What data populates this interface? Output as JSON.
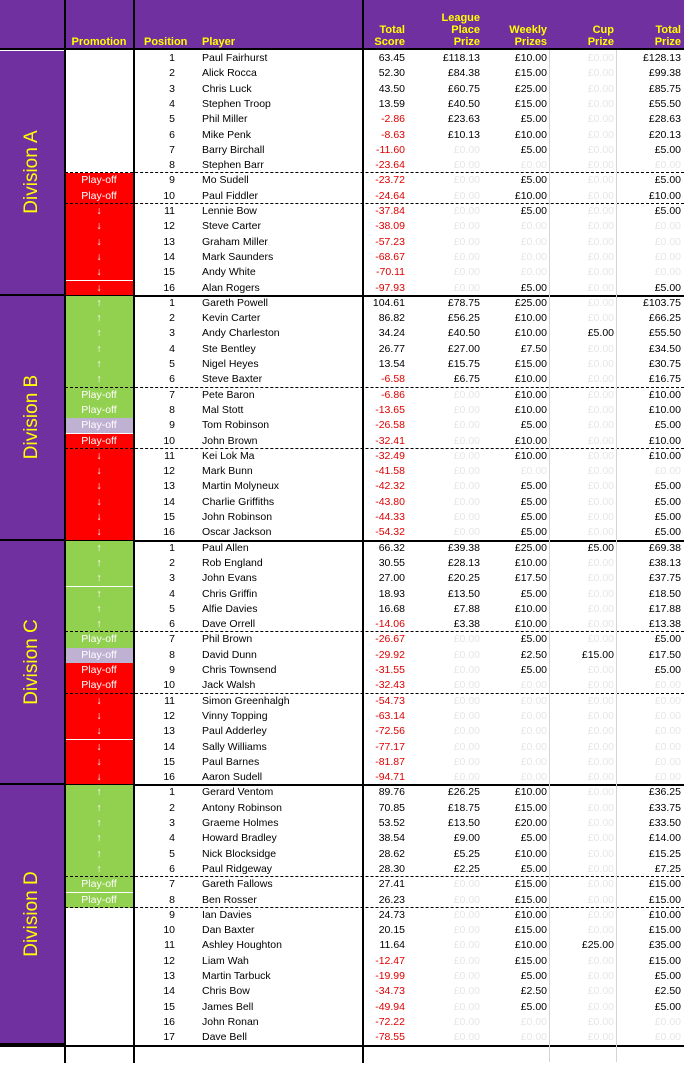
{
  "headers": {
    "promotion": "Promotion",
    "position": "Position",
    "player": "Player",
    "total_score": [
      "Total",
      "Score"
    ],
    "league_place_prize": [
      "League",
      "Place",
      "Prize"
    ],
    "weekly_prizes": [
      "Weekly",
      "Prizes"
    ],
    "cup_prize": [
      "Cup",
      "Prize"
    ],
    "total_prize": [
      "Total",
      "Prize"
    ]
  },
  "divisions": [
    {
      "name": "Division A",
      "rows": [
        {
          "pos": "1",
          "player": "Paul Fairhurst",
          "score": "63.45",
          "league": "£118.13",
          "weekly": "£10.00",
          "cup": "£0.00",
          "total": "£128.13",
          "promo": "",
          "promo_color": "#ffffff"
        },
        {
          "pos": "2",
          "player": "Alick Rocca",
          "score": "52.30",
          "league": "£84.38",
          "weekly": "£15.00",
          "cup": "£0.00",
          "total": "£99.38",
          "promo": "",
          "promo_color": "#ffffff"
        },
        {
          "pos": "3",
          "player": "Chris Luck",
          "score": "43.50",
          "league": "£60.75",
          "weekly": "£25.00",
          "cup": "£0.00",
          "total": "£85.75",
          "promo": "",
          "promo_color": "#ffffff"
        },
        {
          "pos": "4",
          "player": "Stephen Troop",
          "score": "13.59",
          "league": "£40.50",
          "weekly": "£15.00",
          "cup": "£0.00",
          "total": "£55.50",
          "promo": "",
          "promo_color": "#ffffff"
        },
        {
          "pos": "5",
          "player": "Phil Miller",
          "score": "-2.86",
          "league": "£23.63",
          "weekly": "£5.00",
          "cup": "£0.00",
          "total": "£28.63",
          "promo": "",
          "promo_color": "#ffffff"
        },
        {
          "pos": "6",
          "player": "Mike Penk",
          "score": "-8.63",
          "league": "£10.13",
          "weekly": "£10.00",
          "cup": "£0.00",
          "total": "£20.13",
          "promo": "",
          "promo_color": "#ffffff"
        },
        {
          "pos": "7",
          "player": "Barry Birchall",
          "score": "-11.60",
          "league": "£0.00",
          "weekly": "£5.00",
          "cup": "£0.00",
          "total": "£5.00",
          "promo": "",
          "promo_color": "#ffffff"
        },
        {
          "pos": "8",
          "player": "Stephen Barr",
          "score": "-23.64",
          "league": "£0.00",
          "weekly": "£0.00",
          "cup": "£0.00",
          "total": "£0.00",
          "promo": "",
          "promo_color": "#ffffff"
        },
        {
          "pos": "9",
          "player": "Mo Sudell",
          "score": "-23.72",
          "league": "£0.00",
          "weekly": "£5.00",
          "cup": "£0.00",
          "total": "£5.00",
          "promo": "Play-off",
          "promo_color": "#ff0000"
        },
        {
          "pos": "10",
          "player": "Paul Fiddler",
          "score": "-24.64",
          "league": "£0.00",
          "weekly": "£10.00",
          "cup": "£0.00",
          "total": "£10.00",
          "promo": "Play-off",
          "promo_color": "#ff0000"
        },
        {
          "pos": "11",
          "player": "Lennie Bow",
          "score": "-37.84",
          "league": "£0.00",
          "weekly": "£5.00",
          "cup": "£0.00",
          "total": "£5.00",
          "promo": "↓",
          "promo_color": "#ff0000"
        },
        {
          "pos": "12",
          "player": "Steve Carter",
          "score": "-38.09",
          "league": "£0.00",
          "weekly": "£0.00",
          "cup": "£0.00",
          "total": "£0.00",
          "promo": "↓",
          "promo_color": "#ff0000"
        },
        {
          "pos": "13",
          "player": "Graham Miller",
          "score": "-57.23",
          "league": "£0.00",
          "weekly": "£0.00",
          "cup": "£0.00",
          "total": "£0.00",
          "promo": "↓",
          "promo_color": "#ff0000"
        },
        {
          "pos": "14",
          "player": "Mark Saunders",
          "score": "-68.67",
          "league": "£0.00",
          "weekly": "£0.00",
          "cup": "£0.00",
          "total": "£0.00",
          "promo": "↓",
          "promo_color": "#ff0000"
        },
        {
          "pos": "15",
          "player": "Andy White",
          "score": "-70.11",
          "league": "£0.00",
          "weekly": "£0.00",
          "cup": "£0.00",
          "total": "£0.00",
          "promo": "↓",
          "promo_color": "#ff0000"
        },
        {
          "pos": "16",
          "player": "Alan Rogers",
          "score": "-97.93",
          "league": "£0.00",
          "weekly": "£5.00",
          "cup": "£0.00",
          "total": "£5.00",
          "promo": "↓",
          "promo_color": "#ff0000"
        }
      ]
    },
    {
      "name": "Division B",
      "rows": [
        {
          "pos": "1",
          "player": "Gareth Powell",
          "score": "104.61",
          "league": "£78.75",
          "weekly": "£25.00",
          "cup": "£0.00",
          "total": "£103.75",
          "promo": "↑",
          "promo_color": "#92d050"
        },
        {
          "pos": "2",
          "player": "Kevin Carter",
          "score": "86.82",
          "league": "£56.25",
          "weekly": "£10.00",
          "cup": "£0.00",
          "total": "£66.25",
          "promo": "↑",
          "promo_color": "#92d050"
        },
        {
          "pos": "3",
          "player": "Andy Charleston",
          "score": "34.24",
          "league": "£40.50",
          "weekly": "£10.00",
          "cup": "£5.00",
          "total": "£55.50",
          "promo": "↑",
          "promo_color": "#92d050"
        },
        {
          "pos": "4",
          "player": "Ste Bentley",
          "score": "26.77",
          "league": "£27.00",
          "weekly": "£7.50",
          "cup": "£0.00",
          "total": "£34.50",
          "promo": "↑",
          "promo_color": "#92d050"
        },
        {
          "pos": "5",
          "player": "Nigel Heyes",
          "score": "13.54",
          "league": "£15.75",
          "weekly": "£15.00",
          "cup": "£0.00",
          "total": "£30.75",
          "promo": "↑",
          "promo_color": "#92d050"
        },
        {
          "pos": "6",
          "player": "Steve Baxter",
          "score": "-6.58",
          "league": "£6.75",
          "weekly": "£10.00",
          "cup": "£0.00",
          "total": "£16.75",
          "promo": "↑",
          "promo_color": "#92d050"
        },
        {
          "pos": "7",
          "player": "Pete Baron",
          "score": "-6.86",
          "league": "£0.00",
          "weekly": "£10.00",
          "cup": "£0.00",
          "total": "£10.00",
          "promo": "Play-off",
          "promo_color": "#92d050"
        },
        {
          "pos": "8",
          "player": "Mal Stott",
          "score": "-13.65",
          "league": "£0.00",
          "weekly": "£10.00",
          "cup": "£0.00",
          "total": "£10.00",
          "promo": "Play-off",
          "promo_color": "#92d050"
        },
        {
          "pos": "9",
          "player": "Tom Robinson",
          "score": "-26.58",
          "league": "£0.00",
          "weekly": "£5.00",
          "cup": "£0.00",
          "total": "£5.00",
          "promo": "Play-off",
          "promo_color": "#bfb1d2"
        },
        {
          "pos": "10",
          "player": "John Brown",
          "score": "-32.41",
          "league": "£0.00",
          "weekly": "£10.00",
          "cup": "£0.00",
          "total": "£10.00",
          "promo": "Play-off",
          "promo_color": "#ff0000"
        },
        {
          "pos": "11",
          "player": "Kei Lok Ma",
          "score": "-32.49",
          "league": "£0.00",
          "weekly": "£10.00",
          "cup": "£0.00",
          "total": "£10.00",
          "promo": "↓",
          "promo_color": "#ff0000"
        },
        {
          "pos": "12",
          "player": "Mark Bunn",
          "score": "-41.58",
          "league": "£0.00",
          "weekly": "£0.00",
          "cup": "£0.00",
          "total": "£0.00",
          "promo": "↓",
          "promo_color": "#ff0000"
        },
        {
          "pos": "13",
          "player": "Martin Molyneux",
          "score": "-42.32",
          "league": "£0.00",
          "weekly": "£5.00",
          "cup": "£0.00",
          "total": "£5.00",
          "promo": "↓",
          "promo_color": "#ff0000"
        },
        {
          "pos": "14",
          "player": "Charlie Griffiths",
          "score": "-43.80",
          "league": "£0.00",
          "weekly": "£5.00",
          "cup": "£0.00",
          "total": "£5.00",
          "promo": "↓",
          "promo_color": "#ff0000"
        },
        {
          "pos": "15",
          "player": "John Robinson",
          "score": "-44.33",
          "league": "£0.00",
          "weekly": "£5.00",
          "cup": "£0.00",
          "total": "£5.00",
          "promo": "↓",
          "promo_color": "#ff0000"
        },
        {
          "pos": "16",
          "player": "Oscar Jackson",
          "score": "-54.32",
          "league": "£0.00",
          "weekly": "£5.00",
          "cup": "£0.00",
          "total": "£5.00",
          "promo": "↓",
          "promo_color": "#ff0000"
        }
      ]
    },
    {
      "name": "Division C",
      "rows": [
        {
          "pos": "1",
          "player": "Paul Allen",
          "score": "66.32",
          "league": "£39.38",
          "weekly": "£25.00",
          "cup": "£5.00",
          "total": "£69.38",
          "promo": "↑",
          "promo_color": "#92d050"
        },
        {
          "pos": "2",
          "player": "Rob England",
          "score": "30.55",
          "league": "£28.13",
          "weekly": "£10.00",
          "cup": "£0.00",
          "total": "£38.13",
          "promo": "↑",
          "promo_color": "#92d050"
        },
        {
          "pos": "3",
          "player": "John Evans",
          "score": "27.00",
          "league": "£20.25",
          "weekly": "£17.50",
          "cup": "£0.00",
          "total": "£37.75",
          "promo": "↑",
          "promo_color": "#92d050"
        },
        {
          "pos": "4",
          "player": "Chris Griffin",
          "score": "18.93",
          "league": "£13.50",
          "weekly": "£5.00",
          "cup": "£0.00",
          "total": "£18.50",
          "promo": "↑",
          "promo_color": "#92d050"
        },
        {
          "pos": "5",
          "player": "Alfie Davies",
          "score": "16.68",
          "league": "£7.88",
          "weekly": "£10.00",
          "cup": "£0.00",
          "total": "£17.88",
          "promo": "↑",
          "promo_color": "#92d050"
        },
        {
          "pos": "6",
          "player": "Dave Orrell",
          "score": "-14.06",
          "league": "£3.38",
          "weekly": "£10.00",
          "cup": "£0.00",
          "total": "£13.38",
          "promo": "↑",
          "promo_color": "#92d050"
        },
        {
          "pos": "7",
          "player": "Phil Brown",
          "score": "-26.67",
          "league": "£0.00",
          "weekly": "£5.00",
          "cup": "£0.00",
          "total": "£5.00",
          "promo": "Play-off",
          "promo_color": "#92d050"
        },
        {
          "pos": "8",
          "player": "David Dunn",
          "score": "-29.92",
          "league": "£0.00",
          "weekly": "£2.50",
          "cup": "£15.00",
          "total": "£17.50",
          "promo": "Play-off",
          "promo_color": "#bfb1d2"
        },
        {
          "pos": "9",
          "player": "Chris Townsend",
          "score": "-31.55",
          "league": "£0.00",
          "weekly": "£5.00",
          "cup": "£0.00",
          "total": "£5.00",
          "promo": "Play-off",
          "promo_color": "#ff0000"
        },
        {
          "pos": "10",
          "player": "Jack Walsh",
          "score": "-32.43",
          "league": "£0.00",
          "weekly": "£0.00",
          "cup": "£0.00",
          "total": "£0.00",
          "promo": "Play-off",
          "promo_color": "#ff0000"
        },
        {
          "pos": "11",
          "player": "Simon Greenhalgh",
          "score": "-54.73",
          "league": "£0.00",
          "weekly": "£0.00",
          "cup": "£0.00",
          "total": "£0.00",
          "promo": "↓",
          "promo_color": "#ff0000"
        },
        {
          "pos": "12",
          "player": "Vinny Topping",
          "score": "-63.14",
          "league": "£0.00",
          "weekly": "£0.00",
          "cup": "£0.00",
          "total": "£0.00",
          "promo": "↓",
          "promo_color": "#ff0000"
        },
        {
          "pos": "13",
          "player": "Paul Adderley",
          "score": "-72.56",
          "league": "£0.00",
          "weekly": "£0.00",
          "cup": "£0.00",
          "total": "£0.00",
          "promo": "↓",
          "promo_color": "#ff0000"
        },
        {
          "pos": "14",
          "player": "Sally Williams",
          "score": "-77.17",
          "league": "£0.00",
          "weekly": "£0.00",
          "cup": "£0.00",
          "total": "£0.00",
          "promo": "↓",
          "promo_color": "#ff0000"
        },
        {
          "pos": "15",
          "player": "Paul Barnes",
          "score": "-81.87",
          "league": "£0.00",
          "weekly": "£0.00",
          "cup": "£0.00",
          "total": "£0.00",
          "promo": "↓",
          "promo_color": "#ff0000"
        },
        {
          "pos": "16",
          "player": "Aaron Sudell",
          "score": "-94.71",
          "league": "£0.00",
          "weekly": "£0.00",
          "cup": "£0.00",
          "total": "£0.00",
          "promo": "↓",
          "promo_color": "#ff0000"
        }
      ]
    },
    {
      "name": "Division D",
      "rows": [
        {
          "pos": "1",
          "player": "Gerard Ventom",
          "score": "89.76",
          "league": "£26.25",
          "weekly": "£10.00",
          "cup": "£0.00",
          "total": "£36.25",
          "promo": "↑",
          "promo_color": "#92d050"
        },
        {
          "pos": "2",
          "player": "Antony Robinson",
          "score": "70.85",
          "league": "£18.75",
          "weekly": "£15.00",
          "cup": "£0.00",
          "total": "£33.75",
          "promo": "↑",
          "promo_color": "#92d050"
        },
        {
          "pos": "3",
          "player": "Graeme Holmes",
          "score": "53.52",
          "league": "£13.50",
          "weekly": "£20.00",
          "cup": "£0.00",
          "total": "£33.50",
          "promo": "↑",
          "promo_color": "#92d050"
        },
        {
          "pos": "4",
          "player": "Howard Bradley",
          "score": "38.54",
          "league": "£9.00",
          "weekly": "£5.00",
          "cup": "£0.00",
          "total": "£14.00",
          "promo": "↑",
          "promo_color": "#92d050"
        },
        {
          "pos": "5",
          "player": "Nick Blocksidge",
          "score": "28.62",
          "league": "£5.25",
          "weekly": "£10.00",
          "cup": "£0.00",
          "total": "£15.25",
          "promo": "↑",
          "promo_color": "#92d050"
        },
        {
          "pos": "6",
          "player": "Paul Ridgeway",
          "score": "28.30",
          "league": "£2.25",
          "weekly": "£5.00",
          "cup": "£0.00",
          "total": "£7.25",
          "promo": "↑",
          "promo_color": "#92d050"
        },
        {
          "pos": "7",
          "player": "Gareth Fallows",
          "score": "27.41",
          "league": "£0.00",
          "weekly": "£15.00",
          "cup": "£0.00",
          "total": "£15.00",
          "promo": "Play-off",
          "promo_color": "#92d050"
        },
        {
          "pos": "8",
          "player": "Ben Rosser",
          "score": "26.23",
          "league": "£0.00",
          "weekly": "£15.00",
          "cup": "£0.00",
          "total": "£15.00",
          "promo": "Play-off",
          "promo_color": "#92d050"
        },
        {
          "pos": "9",
          "player": "Ian Davies",
          "score": "24.73",
          "league": "£0.00",
          "weekly": "£10.00",
          "cup": "£0.00",
          "total": "£10.00",
          "promo": "",
          "promo_color": "#ffffff"
        },
        {
          "pos": "10",
          "player": "Dan Baxter",
          "score": "20.15",
          "league": "£0.00",
          "weekly": "£15.00",
          "cup": "£0.00",
          "total": "£15.00",
          "promo": "",
          "promo_color": "#ffffff"
        },
        {
          "pos": "11",
          "player": "Ashley Houghton",
          "score": "11.64",
          "league": "£0.00",
          "weekly": "£10.00",
          "cup": "£25.00",
          "total": "£35.00",
          "promo": "",
          "promo_color": "#ffffff"
        },
        {
          "pos": "12",
          "player": "Liam Wah",
          "score": "-12.47",
          "league": "£0.00",
          "weekly": "£15.00",
          "cup": "£0.00",
          "total": "£15.00",
          "promo": "",
          "promo_color": "#ffffff"
        },
        {
          "pos": "13",
          "player": "Martin Tarbuck",
          "score": "-19.99",
          "league": "£0.00",
          "weekly": "£5.00",
          "cup": "£0.00",
          "total": "£5.00",
          "promo": "",
          "promo_color": "#ffffff"
        },
        {
          "pos": "14",
          "player": "Chris Bow",
          "score": "-34.73",
          "league": "£0.00",
          "weekly": "£2.50",
          "cup": "£0.00",
          "total": "£2.50",
          "promo": "",
          "promo_color": "#ffffff"
        },
        {
          "pos": "15",
          "player": "James Bell",
          "score": "-49.94",
          "league": "£0.00",
          "weekly": "£5.00",
          "cup": "£0.00",
          "total": "£5.00",
          "promo": "",
          "promo_color": "#ffffff"
        },
        {
          "pos": "16",
          "player": "John Ronan",
          "score": "-72.22",
          "league": "£0.00",
          "weekly": "£0.00",
          "cup": "£0.00",
          "total": "£0.00",
          "promo": "",
          "promo_color": "#ffffff"
        },
        {
          "pos": "17",
          "player": "Dave Bell",
          "score": "-78.55",
          "league": "£0.00",
          "weekly": "£0.00",
          "cup": "£0.00",
          "total": "£0.00",
          "promo": "",
          "promo_color": "#ffffff"
        }
      ]
    }
  ]
}
